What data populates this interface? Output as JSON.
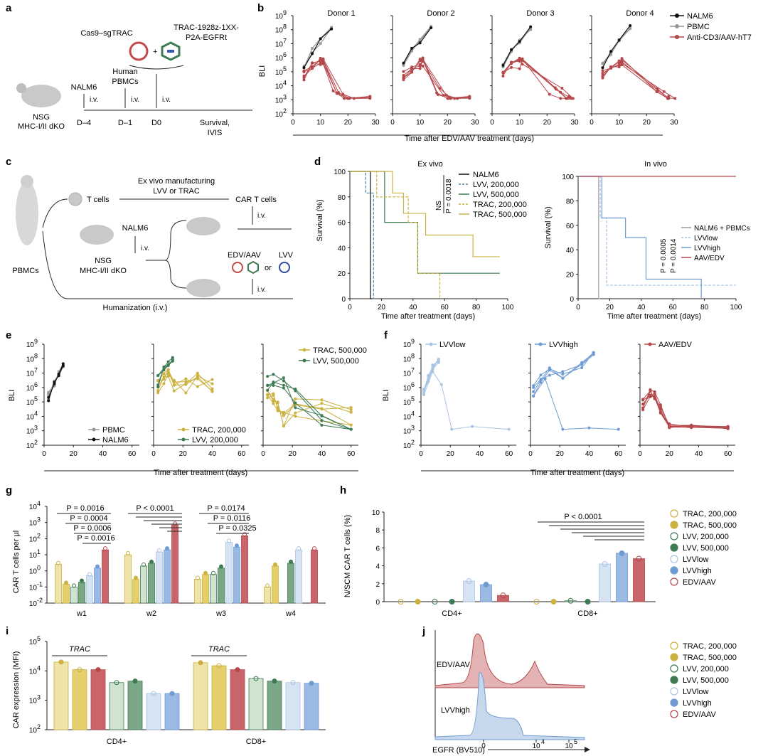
{
  "colors": {
    "nalm6": "#111111",
    "pbmc": "#999999",
    "aav": "#b5474b",
    "trac": "#cbb13f",
    "lvv": "#3e7a52",
    "lvv_low": "#a9c4e3",
    "lvv_high": "#6f9bd3",
    "green_light": "#e3f0e3"
  },
  "panel_a": {
    "letter": "a",
    "cas9": "Cas9–sgTRAC",
    "plus": "+",
    "construct": [
      "TRAC-1928z-1XX-",
      "P2A-EGFRt"
    ],
    "mouse": [
      "NSG",
      "MHC-I/II dKO"
    ],
    "events": [
      {
        "label": [
          "NALM6"
        ],
        "route": "i.v.",
        "day": "D–4"
      },
      {
        "label": [
          "Human",
          "PBMCs"
        ],
        "route": "i.v.",
        "day": "D–1"
      },
      {
        "label": [
          ""
        ],
        "route": "i.v.",
        "day": "D0"
      },
      {
        "label": [
          ""
        ],
        "route": "",
        "day": "Survival,"
      }
    ],
    "end_sub": "IVIS"
  },
  "panel_b": {
    "letter": "b",
    "ylabel": "BLI",
    "yticks": [
      "10",
      "10",
      "10",
      "10",
      "10",
      "10",
      "10",
      "10"
    ],
    "yexp": [
      "9",
      "8",
      "7",
      "6",
      "5",
      "4",
      "3",
      "2"
    ],
    "xticks": [
      "0",
      "10",
      "20",
      "30"
    ],
    "donors": [
      "Donor 1",
      "Donor 2",
      "Donor 3",
      "Donor 4"
    ],
    "xlabel": "Time after EDV/AAV treatment (days)",
    "legend": [
      "NALM6",
      "PBMC",
      "Anti-CD3/AAV-hT7"
    ]
  },
  "panel_c": {
    "letter": "c",
    "source": "PBMCs",
    "tcells": "T cells",
    "manuf": [
      "Ex vivo manufacturing",
      "LVV or TRAC"
    ],
    "cart": "CAR T cells",
    "iv": "i.v.",
    "nalm6": "NALM6",
    "mouse": [
      "NSG",
      "MHC-I/II dKO"
    ],
    "edv": "EDV/AAV",
    "or": "or",
    "lvv": "LVV",
    "human": "Humanization (i.v.)"
  },
  "panel_d": {
    "letter": "d",
    "left_title": "Ex vivo",
    "right_title": "In vivo",
    "ylabel": "Survival (%)",
    "xlabel": "Time after treatment (days)",
    "yticks": [
      "100",
      "80",
      "60",
      "40",
      "20",
      "0"
    ],
    "xticks": [
      "0",
      "20",
      "40",
      "60",
      "80",
      "100"
    ],
    "legend_left": [
      "NALM6",
      "LVV, 200,000",
      "LVV, 500,000",
      "TRAC, 200,000",
      "TRAC, 500,000"
    ],
    "ns": "NS",
    "p_left": "P = 0.0018",
    "legend_right": [
      "NALM6 + PBMCs",
      "LVVlow",
      "LVVhigh",
      "AAV/EDV"
    ],
    "p_right": [
      "P = 0.0005",
      "P = 0.0014"
    ]
  },
  "panel_e": {
    "letter": "e",
    "ylabel": "BLI",
    "xticks": [
      "0",
      "20",
      "40",
      "60"
    ],
    "legend1": [
      "PBMC",
      "NALM6"
    ],
    "legend2": [
      "TRAC, 200,000",
      "LVV, 200,000"
    ],
    "legend3": [
      "TRAC, 500,000",
      "LVV, 500,000"
    ],
    "xlabel": "Time after treatment (days)"
  },
  "panel_f": {
    "letter": "f",
    "ylabel": "BLI",
    "titles": [
      "LVVlow",
      "LVVhigh",
      "AAV/EDV"
    ],
    "xlabel": "Time after treatment (days)"
  },
  "panel_g": {
    "letter": "g",
    "ylabel": "CAR T cells per µl",
    "groups": [
      "w1",
      "w2",
      "w3",
      "w4"
    ],
    "pvals_w1": [
      "P = 0.0016",
      "P = 0.0004",
      "P = 0.0006",
      "P = 0.0016"
    ],
    "pvals_w2": [
      "P < 0.0001"
    ],
    "pvals_w3": [
      "P = 0.0174",
      "P = 0.0116",
      "P = 0.0325"
    ]
  },
  "panel_h": {
    "letter": "h",
    "ylabel": "N/SCM CAR T cells (%)",
    "yticks": [
      "10",
      "8",
      "6",
      "4",
      "2",
      "0"
    ],
    "groups": [
      "CD4+",
      "CD8+"
    ],
    "pval": "P < 0.0001",
    "legend": [
      "TRAC, 200,000",
      "TRAC, 500,000",
      "LVV, 200,000",
      "LVV, 500,000",
      "LVVlow",
      "LVVhigh",
      "EDV/AAV"
    ]
  },
  "panel_i": {
    "letter": "i",
    "ylabel": "CAR expression (MFI)",
    "groups": [
      "CD4+",
      "CD8+"
    ],
    "trac": "TRAC",
    "legend": [
      "TRAC, 200,000",
      "TRAC, 500,000",
      "LVV, 200,000",
      "LVV, 500,000",
      "LVVlow",
      "LVVhigh",
      "EDV/AAV"
    ]
  },
  "panel_j": {
    "letter": "j",
    "labels": [
      "EDV/AAV",
      "LVVhigh"
    ],
    "xticks": [
      "0",
      "10",
      "10"
    ],
    "xlabel": "EGFR (BV510)"
  },
  "chart_data": [
    {
      "type": "bar",
      "title": "",
      "ylabel": "CAR T cells per µl",
      "yscale": "log",
      "ylim": [
        0.01,
        10000
      ],
      "categories": [
        "w1",
        "w2",
        "w3",
        "w4"
      ],
      "series": [
        {
          "name": "TRAC, 200,000",
          "values": [
            2.5,
            10,
            0.3,
            0.1
          ]
        },
        {
          "name": "TRAC, 500,000",
          "values": [
            0.15,
            0.3,
            0.6,
            2
          ]
        },
        {
          "name": "LVV, 200,000",
          "values": [
            0.1,
            2,
            0.6,
            null
          ]
        },
        {
          "name": "LVV, 500,000",
          "values": [
            0.2,
            3,
            1.5,
            3
          ]
        },
        {
          "name": "LVVlow",
          "values": [
            0.5,
            15,
            60,
            20
          ]
        },
        {
          "name": "LVVhigh",
          "values": [
            1.5,
            20,
            30,
            null
          ]
        },
        {
          "name": "EDV/AAV",
          "values": [
            20,
            700,
            150,
            20
          ]
        }
      ]
    },
    {
      "type": "bar",
      "title": "",
      "ylabel": "N/SCM CAR T cells (%)",
      "ylim": [
        0,
        10
      ],
      "categories": [
        "CD4+",
        "CD8+"
      ],
      "series": [
        {
          "name": "TRAC, 200,000",
          "values": [
            0,
            0
          ]
        },
        {
          "name": "TRAC, 500,000",
          "values": [
            0,
            0
          ]
        },
        {
          "name": "LVV, 200,000",
          "values": [
            0,
            0.1
          ]
        },
        {
          "name": "LVV, 500,000",
          "values": [
            0,
            0
          ]
        },
        {
          "name": "LVVlow",
          "values": [
            2.3,
            4.2
          ]
        },
        {
          "name": "LVVhigh",
          "values": [
            1.9,
            5.4
          ]
        },
        {
          "name": "EDV/AAV",
          "values": [
            0.7,
            4.8
          ]
        }
      ]
    },
    {
      "type": "bar",
      "title": "",
      "ylabel": "CAR expression (MFI)",
      "yscale": "log",
      "ylim": [
        100,
        100000
      ],
      "categories": [
        "CD4+",
        "CD8+"
      ],
      "series": [
        {
          "name": "TRAC, 200,000",
          "values": [
            20000,
            19000
          ]
        },
        {
          "name": "TRAC, 500,000",
          "values": [
            11000,
            15000
          ]
        },
        {
          "name": "EDV/AAV",
          "values": [
            11000,
            11000
          ]
        },
        {
          "name": "LVV, 200,000",
          "values": [
            4000,
            5500
          ]
        },
        {
          "name": "LVV, 500,000",
          "values": [
            4500,
            4500
          ]
        },
        {
          "name": "LVVlow",
          "values": [
            1700,
            4000
          ]
        },
        {
          "name": "LVVhigh",
          "values": [
            1700,
            3800
          ]
        }
      ]
    }
  ]
}
